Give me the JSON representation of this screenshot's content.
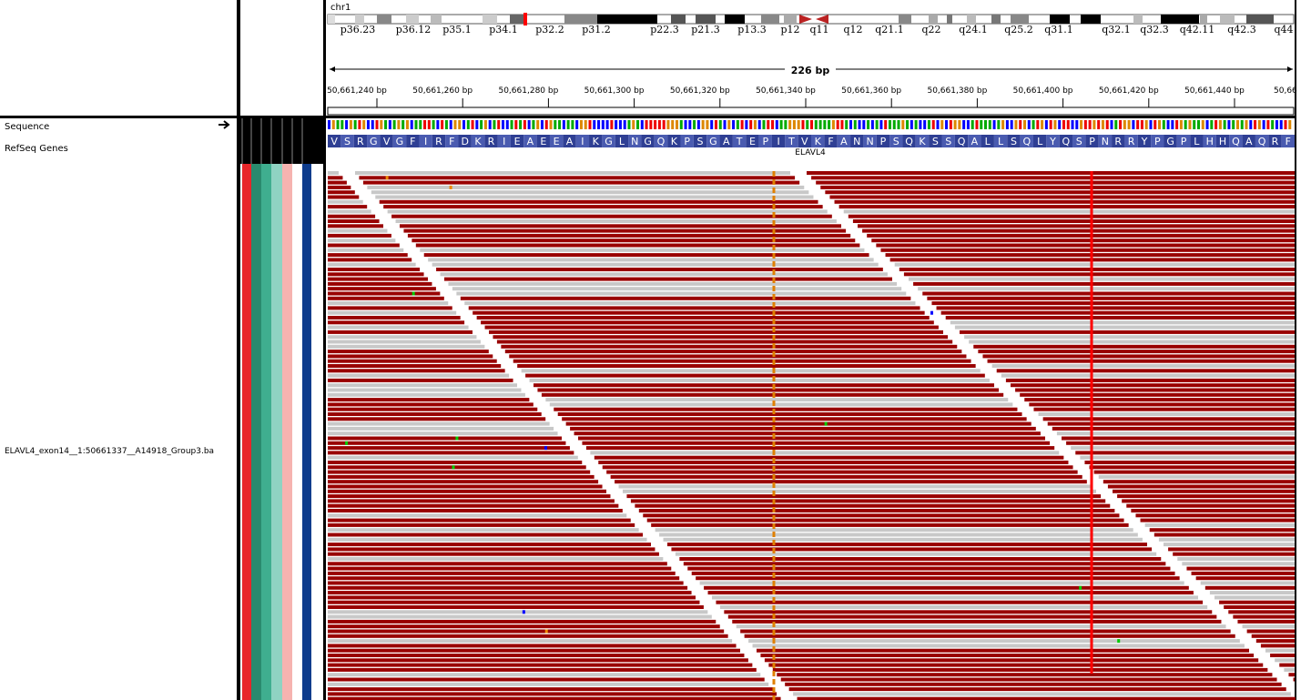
{
  "header": {
    "chromosome": "chr1",
    "cytobands": [
      "p36.23",
      "p36.12",
      "p35.1",
      "p34.1",
      "p32.2",
      "p31.2",
      "p22.3",
      "p21.3",
      "p13.3",
      "p12",
      "q11",
      "q12",
      "q21.1",
      "q22",
      "q24.1",
      "q25.2",
      "q31.1",
      "q32.1",
      "q32.3",
      "q42.11",
      "q42.3",
      "q44"
    ],
    "span": "226 bp",
    "ruler": [
      "50,661,240 bp",
      "50,661,260 bp",
      "50,661,280 bp",
      "50,661,300 bp",
      "50,661,320 bp",
      "50,661,340 bp",
      "50,661,360 bp",
      "50,661,380 bp",
      "50,661,400 bp",
      "50,661,420 bp",
      "50,661,440 bp",
      "50,66"
    ]
  },
  "tracks": {
    "sequence": "Sequence",
    "refseq": "RefSeq Genes",
    "alignment": "ELAVL4_exon14__1:50661337__A14918_Group3.ba",
    "gene": "ELAVL4",
    "amino_acids": [
      "V",
      "S",
      "R",
      "G",
      "V",
      "G",
      "F",
      "I",
      "R",
      "F",
      "D",
      "K",
      "R",
      "I",
      "E",
      "A",
      "E",
      "E",
      "A",
      "I",
      "K",
      "G",
      "L",
      "N",
      "G",
      "Q",
      "K",
      "P",
      "S",
      "G",
      "A",
      "T",
      "E",
      "P",
      "I",
      "T",
      "V",
      "K",
      "F",
      "A",
      "N",
      "N",
      "P",
      "S",
      "Q",
      "K",
      "S",
      "S",
      "Q",
      "A",
      "L",
      "L",
      "S",
      "Q",
      "L",
      "Y",
      "Q",
      "S",
      "P",
      "N",
      "R",
      "R",
      "Y",
      "P",
      "G",
      "P",
      "L",
      "H",
      "H",
      "Q",
      "A",
      "Q",
      "R",
      "F"
    ]
  }
}
